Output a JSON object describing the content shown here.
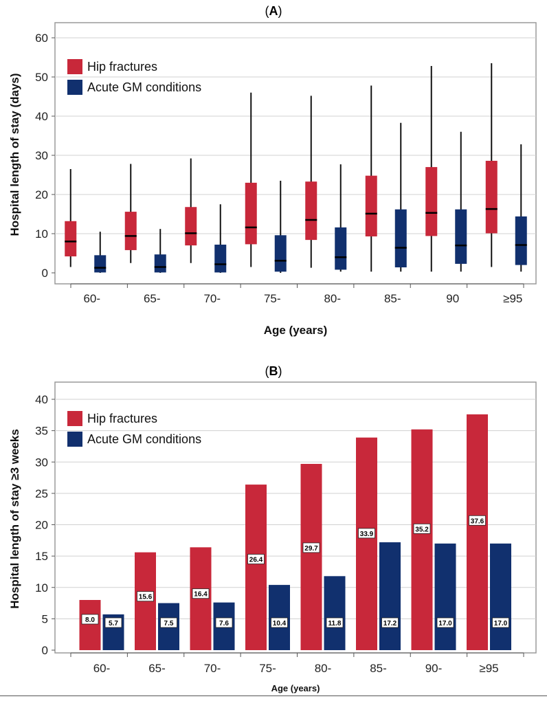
{
  "chart_data": [
    {
      "type": "box",
      "panel": "A",
      "title_parts": {
        "open": "(",
        "letter": "A",
        "close": ")"
      },
      "ylabel": "Hospital length of stay (days)",
      "xlabel": "Age (years)",
      "ylim": [
        0,
        60
      ],
      "yticks": [
        "0",
        "10",
        "20",
        "30",
        "40",
        "50",
        "60"
      ],
      "grid": true,
      "legend_position": "top-left",
      "categories": [
        "60-",
        "65-",
        "70-",
        "75-",
        "80-",
        "85-",
        "90",
        "≥95"
      ],
      "series": [
        {
          "name": "Hip fractures",
          "color": "#c8283a",
          "boxes": [
            {
              "min": 1.5,
              "q1": 4.2,
              "median": 8.0,
              "q3": 13.2,
              "max": 26.5
            },
            {
              "min": 2.5,
              "q1": 5.8,
              "median": 9.4,
              "q3": 15.6,
              "max": 27.8
            },
            {
              "min": 2.5,
              "q1": 7.0,
              "median": 10.1,
              "q3": 16.8,
              "max": 29.2
            },
            {
              "min": 1.5,
              "q1": 7.3,
              "median": 11.6,
              "q3": 23.0,
              "max": 46.0
            },
            {
              "min": 1.3,
              "q1": 8.4,
              "median": 13.5,
              "q3": 23.3,
              "max": 45.2
            },
            {
              "min": 0.3,
              "q1": 9.3,
              "median": 15.1,
              "q3": 24.8,
              "max": 47.8
            },
            {
              "min": 0.3,
              "q1": 9.4,
              "median": 15.3,
              "q3": 27.0,
              "max": 52.8
            },
            {
              "min": 1.5,
              "q1": 10.1,
              "median": 16.3,
              "q3": 28.6,
              "max": 53.5
            }
          ]
        },
        {
          "name": "Acute GM conditions",
          "color": "#11306e",
          "boxes": [
            {
              "min": 0.0,
              "q1": 0.1,
              "median": 1.3,
              "q3": 4.5,
              "max": 10.5
            },
            {
              "min": 0.0,
              "q1": 0.1,
              "median": 1.5,
              "q3": 4.7,
              "max": 11.2
            },
            {
              "min": 0.0,
              "q1": 0.1,
              "median": 2.2,
              "q3": 7.2,
              "max": 17.5
            },
            {
              "min": 0.0,
              "q1": 0.3,
              "median": 3.1,
              "q3": 9.6,
              "max": 23.5
            },
            {
              "min": 0.3,
              "q1": 0.8,
              "median": 4.0,
              "q3": 11.6,
              "max": 27.7
            },
            {
              "min": 0.3,
              "q1": 1.4,
              "median": 6.4,
              "q3": 16.2,
              "max": 38.3
            },
            {
              "min": 0.3,
              "q1": 2.3,
              "median": 7.0,
              "q3": 16.2,
              "max": 36.0
            },
            {
              "min": 0.3,
              "q1": 2.0,
              "median": 7.1,
              "q3": 14.4,
              "max": 32.8
            }
          ]
        }
      ]
    },
    {
      "type": "bar",
      "panel": "B",
      "title_parts": {
        "open": "(",
        "letter": "B",
        "close": ")"
      },
      "ylabel": "Hospital length of stay ≥3 weeks",
      "xlabel": "Age (years)",
      "ylim": [
        0,
        40
      ],
      "yticks": [
        "0",
        "5",
        "10",
        "15",
        "20",
        "25",
        "30",
        "35",
        "40"
      ],
      "grid": true,
      "legend_position": "top-left",
      "categories": [
        "60-",
        "65-",
        "70-",
        "75-",
        "80-",
        "85-",
        "90-",
        "≥95"
      ],
      "series": [
        {
          "name": "Hip fractures",
          "color": "#c8283a",
          "values": [
            8.0,
            15.6,
            16.4,
            26.4,
            29.7,
            33.9,
            35.2,
            37.6
          ],
          "labels": [
            "8.0",
            "15.6",
            "16.4",
            "26.4",
            "29.7",
            "33.9",
            "35.2",
            "37.6"
          ]
        },
        {
          "name": "Acute GM conditions",
          "color": "#11306e",
          "values": [
            5.7,
            7.5,
            7.6,
            10.4,
            11.8,
            17.2,
            17.0,
            17.0
          ],
          "labels": [
            "5.7",
            "7.5",
            "7.6",
            "10.4",
            "11.8",
            "17.2",
            "17.0",
            "17.0"
          ]
        }
      ]
    }
  ]
}
